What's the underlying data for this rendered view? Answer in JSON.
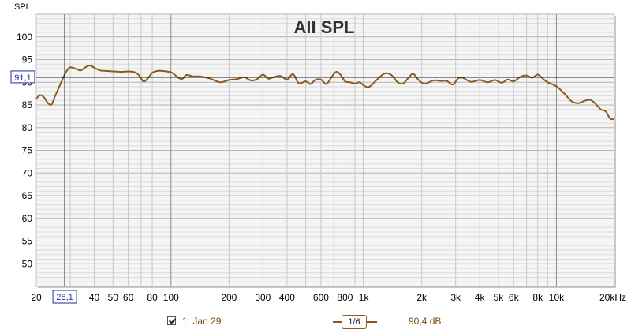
{
  "chart_data": {
    "type": "line",
    "title": "All SPL",
    "ylabel": "SPL",
    "xlabel": "",
    "x_scale": "log",
    "xlim": [
      20,
      20000
    ],
    "ylim": [
      45,
      105
    ],
    "grid": true,
    "y_ticks": [
      "100",
      "95",
      "90",
      "85",
      "80",
      "75",
      "70",
      "65",
      "60",
      "55",
      "50"
    ],
    "x_ticks": [
      {
        "v": 20,
        "label": "20"
      },
      {
        "v": 40,
        "label": "40"
      },
      {
        "v": 50,
        "label": "50"
      },
      {
        "v": 60,
        "label": "60"
      },
      {
        "v": 80,
        "label": "80"
      },
      {
        "v": 100,
        "label": "100"
      },
      {
        "v": 200,
        "label": "200"
      },
      {
        "v": 300,
        "label": "300"
      },
      {
        "v": 400,
        "label": "400"
      },
      {
        "v": 600,
        "label": "600"
      },
      {
        "v": 800,
        "label": "800"
      },
      {
        "v": 1000,
        "label": "1k"
      },
      {
        "v": 2000,
        "label": "2k"
      },
      {
        "v": 3000,
        "label": "3k"
      },
      {
        "v": 4000,
        "label": "4k"
      },
      {
        "v": 5000,
        "label": "5k"
      },
      {
        "v": 6000,
        "label": "6k"
      },
      {
        "v": 8000,
        "label": "8k"
      },
      {
        "v": 10000,
        "label": "10k"
      },
      {
        "v": 20000,
        "label": "20kHz"
      }
    ],
    "cursor": {
      "x": 28.1,
      "y": 91.1,
      "x_label": "28,1",
      "y_label": "91,1"
    },
    "series": [
      {
        "name": "1: Jan 29",
        "color": "#8B5A1F",
        "x": [
          20,
          21,
          22,
          23,
          24,
          25,
          26,
          27,
          28,
          29,
          30,
          32,
          34,
          36,
          38,
          40,
          43,
          46,
          50,
          55,
          60,
          65,
          68,
          72,
          76,
          80,
          85,
          90,
          100,
          105,
          110,
          115,
          120,
          130,
          140,
          150,
          160,
          180,
          200,
          220,
          240,
          260,
          280,
          300,
          320,
          340,
          370,
          400,
          430,
          460,
          500,
          530,
          560,
          600,
          640,
          680,
          720,
          760,
          800,
          850,
          900,
          950,
          1000,
          1050,
          1100,
          1200,
          1300,
          1400,
          1500,
          1600,
          1700,
          1800,
          1900,
          2000,
          2100,
          2300,
          2500,
          2700,
          2900,
          3100,
          3300,
          3600,
          4000,
          4400,
          4800,
          5200,
          5600,
          6000,
          6500,
          7000,
          7500,
          8000,
          8500,
          9000,
          10000,
          11000,
          12000,
          13000,
          14000,
          15000,
          16000,
          17000,
          18000,
          19000,
          20000
        ],
        "y": [
          86.4,
          87.2,
          86.6,
          85.4,
          85.1,
          86.9,
          88.5,
          90.1,
          91.6,
          92.7,
          93.3,
          93.0,
          92.6,
          93.3,
          93.7,
          93.2,
          92.6,
          92.5,
          92.4,
          92.3,
          92.4,
          92.2,
          91.6,
          90.2,
          90.9,
          92.1,
          92.5,
          92.5,
          92.2,
          91.6,
          90.9,
          90.8,
          91.6,
          91.3,
          91.3,
          91.1,
          90.8,
          90.0,
          90.5,
          90.7,
          91.1,
          90.4,
          90.7,
          91.7,
          90.8,
          91.1,
          91.4,
          90.6,
          91.8,
          89.8,
          90.2,
          89.6,
          90.5,
          90.6,
          89.6,
          91.1,
          92.3,
          91.6,
          90.2,
          90.0,
          89.7,
          90.0,
          89.3,
          88.9,
          89.4,
          91.0,
          92.0,
          91.5,
          90.0,
          89.7,
          90.9,
          91.9,
          90.8,
          89.9,
          89.7,
          90.4,
          90.3,
          90.3,
          89.5,
          90.9,
          90.9,
          90.1,
          90.5,
          90.0,
          90.5,
          89.9,
          90.6,
          90.2,
          91.2,
          91.5,
          91.0,
          91.7,
          90.8,
          90.0,
          89.1,
          87.5,
          85.8,
          85.4,
          85.9,
          86.1,
          85.2,
          84.0,
          83.6,
          82.0,
          81.9
        ]
      }
    ]
  },
  "legend": {
    "series_label": "1: Jan 29",
    "smoothing": "1/6",
    "value": "90,4 dB"
  },
  "colors": {
    "curve": "#8B5A1F",
    "cursor_label": "#1C2C9E",
    "plot_background": "#F5F5F5"
  }
}
